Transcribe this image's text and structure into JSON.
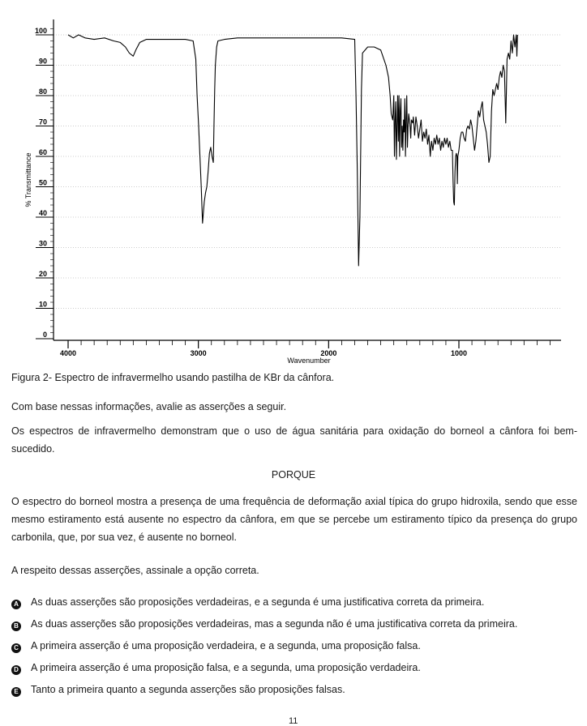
{
  "chart_data": {
    "type": "line",
    "title": "",
    "xlabel": "Wavenumber",
    "ylabel": "% Transmittance",
    "xlim": [
      4050,
      250
    ],
    "ylim": [
      0,
      102
    ],
    "x_ticks": [
      4000,
      3000,
      2000,
      1000
    ],
    "y_ticks": [
      0,
      10,
      20,
      30,
      40,
      50,
      60,
      70,
      80,
      90,
      100
    ],
    "grid": true,
    "series": [
      {
        "name": "",
        "color": "#000000",
        "points": [
          [
            4000,
            100
          ],
          [
            3960,
            99
          ],
          [
            3920,
            100
          ],
          [
            3870,
            99
          ],
          [
            3800,
            98.5
          ],
          [
            3720,
            99
          ],
          [
            3650,
            98
          ],
          [
            3600,
            97.5
          ],
          [
            3560,
            96
          ],
          [
            3530,
            94
          ],
          [
            3500,
            93
          ],
          [
            3480,
            95
          ],
          [
            3450,
            97.5
          ],
          [
            3400,
            98.5
          ],
          [
            3300,
            98.5
          ],
          [
            3200,
            98.5
          ],
          [
            3100,
            98.5
          ],
          [
            3040,
            98
          ],
          [
            3020,
            92
          ],
          [
            3010,
            80
          ],
          [
            2998,
            70
          ],
          [
            2988,
            60
          ],
          [
            2978,
            50
          ],
          [
            2968,
            38
          ],
          [
            2955,
            45
          ],
          [
            2945,
            48
          ],
          [
            2935,
            50
          ],
          [
            2925,
            55
          ],
          [
            2915,
            61
          ],
          [
            2905,
            63
          ],
          [
            2895,
            60
          ],
          [
            2885,
            58
          ],
          [
            2880,
            70
          ],
          [
            2875,
            82
          ],
          [
            2870,
            90
          ],
          [
            2860,
            96
          ],
          [
            2850,
            98
          ],
          [
            2800,
            98.5
          ],
          [
            2700,
            99
          ],
          [
            2500,
            99
          ],
          [
            2300,
            99
          ],
          [
            2100,
            99
          ],
          [
            1900,
            99
          ],
          [
            1800,
            98.5
          ],
          [
            1790,
            80
          ],
          [
            1780,
            55
          ],
          [
            1770,
            24
          ],
          [
            1760,
            40
          ],
          [
            1748,
            82
          ],
          [
            1740,
            94
          ],
          [
            1700,
            96
          ],
          [
            1650,
            96
          ],
          [
            1600,
            95
          ],
          [
            1560,
            90
          ],
          [
            1540,
            86
          ],
          [
            1528,
            80
          ],
          [
            1520,
            74
          ],
          [
            1508,
            72
          ],
          [
            1500,
            80
          ],
          [
            1495,
            60
          ],
          [
            1490,
            72
          ],
          [
            1485,
            78
          ],
          [
            1480,
            59
          ],
          [
            1475,
            70
          ],
          [
            1470,
            80
          ],
          [
            1465,
            65
          ],
          [
            1460,
            80
          ],
          [
            1455,
            60
          ],
          [
            1450,
            75
          ],
          [
            1445,
            79
          ],
          [
            1440,
            63
          ],
          [
            1435,
            70
          ],
          [
            1430,
            62
          ],
          [
            1425,
            72
          ],
          [
            1420,
            68
          ],
          [
            1415,
            79
          ],
          [
            1410,
            60
          ],
          [
            1405,
            72
          ],
          [
            1400,
            80
          ],
          [
            1395,
            63
          ],
          [
            1390,
            70
          ],
          [
            1385,
            74
          ],
          [
            1375,
            70
          ],
          [
            1370,
            66
          ],
          [
            1365,
            72
          ],
          [
            1355,
            71
          ],
          [
            1350,
            73
          ],
          [
            1340,
            67
          ],
          [
            1330,
            73
          ],
          [
            1320,
            70
          ],
          [
            1310,
            66
          ],
          [
            1300,
            69
          ],
          [
            1290,
            72
          ],
          [
            1280,
            65
          ],
          [
            1270,
            68
          ],
          [
            1260,
            66
          ],
          [
            1250,
            69
          ],
          [
            1240,
            64
          ],
          [
            1230,
            67
          ],
          [
            1220,
            60
          ],
          [
            1215,
            63
          ],
          [
            1210,
            65
          ],
          [
            1200,
            62
          ],
          [
            1190,
            66
          ],
          [
            1180,
            64
          ],
          [
            1170,
            67
          ],
          [
            1160,
            64
          ],
          [
            1150,
            66
          ],
          [
            1140,
            62
          ],
          [
            1130,
            65
          ],
          [
            1120,
            63
          ],
          [
            1110,
            66
          ],
          [
            1100,
            64
          ],
          [
            1090,
            66
          ],
          [
            1080,
            63
          ],
          [
            1070,
            65
          ],
          [
            1060,
            62
          ],
          [
            1050,
            62
          ],
          [
            1045,
            52
          ],
          [
            1040,
            45
          ],
          [
            1035,
            44
          ],
          [
            1030,
            55
          ],
          [
            1025,
            60
          ],
          [
            1020,
            61
          ],
          [
            1015,
            60
          ],
          [
            1012,
            51
          ],
          [
            1008,
            60
          ],
          [
            1000,
            62
          ],
          [
            990,
            66
          ],
          [
            980,
            68
          ],
          [
            970,
            68
          ],
          [
            960,
            66
          ],
          [
            950,
            65
          ],
          [
            940,
            69
          ],
          [
            930,
            70
          ],
          [
            920,
            69
          ],
          [
            910,
            72
          ],
          [
            900,
            70
          ],
          [
            890,
            66
          ],
          [
            880,
            62
          ],
          [
            870,
            65
          ],
          [
            860,
            70
          ],
          [
            850,
            75
          ],
          [
            840,
            73
          ],
          [
            830,
            76
          ],
          [
            820,
            78
          ],
          [
            810,
            72
          ],
          [
            800,
            70
          ],
          [
            790,
            68
          ],
          [
            780,
            64
          ],
          [
            770,
            58
          ],
          [
            760,
            60
          ],
          [
            750,
            75
          ],
          [
            740,
            82
          ],
          [
            730,
            80
          ],
          [
            720,
            82
          ],
          [
            710,
            84
          ],
          [
            700,
            82
          ],
          [
            690,
            86
          ],
          [
            680,
            88
          ],
          [
            670,
            86
          ],
          [
            660,
            90
          ],
          [
            650,
            88
          ],
          [
            640,
            71
          ],
          [
            630,
            92
          ],
          [
            620,
            94
          ],
          [
            610,
            92
          ],
          [
            600,
            98
          ],
          [
            590,
            94
          ],
          [
            580,
            100
          ],
          [
            570,
            96
          ],
          [
            560,
            100
          ],
          [
            555,
            93
          ],
          [
            550,
            100
          ]
        ]
      }
    ]
  },
  "caption": "Figura 2- Espectro de infravermelho usando pastilha de KBr da cânfora.",
  "intro": "Com base nessas informações, avalie as asserções a seguir.",
  "assertion1": "Os espectros de infravermelho demonstram que o uso de água sanitária para oxidação do borneol a cânfora foi bem-sucedido.",
  "connector": "PORQUE",
  "assertion2": "O espectro do borneol mostra a presença de uma frequência de deformação axial típica do grupo hidroxila, sendo que esse mesmo estiramento está ausente no espectro da cânfora, em que se percebe um estiramento típico da presença do grupo carbonila, que, por sua vez, é ausente no borneol.",
  "question": "A respeito dessas asserções, assinale a opção correta.",
  "options": [
    {
      "letter": "A",
      "text": "As duas asserções são proposições verdadeiras, e a segunda é uma justificativa correta da primeira."
    },
    {
      "letter": "B",
      "text": "As duas asserções são proposições verdadeiras, mas a segunda não é uma justificativa correta da primeira."
    },
    {
      "letter": "C",
      "text": "A primeira asserção é uma proposição verdadeira, e a segunda, uma proposição falsa."
    },
    {
      "letter": "D",
      "text": "A primeira asserção é uma proposição falsa, e a segunda, uma proposição verdadeira."
    },
    {
      "letter": "E",
      "text": "Tanto a primeira quanto a segunda asserções são proposições falsas."
    }
  ],
  "page_number": "11"
}
